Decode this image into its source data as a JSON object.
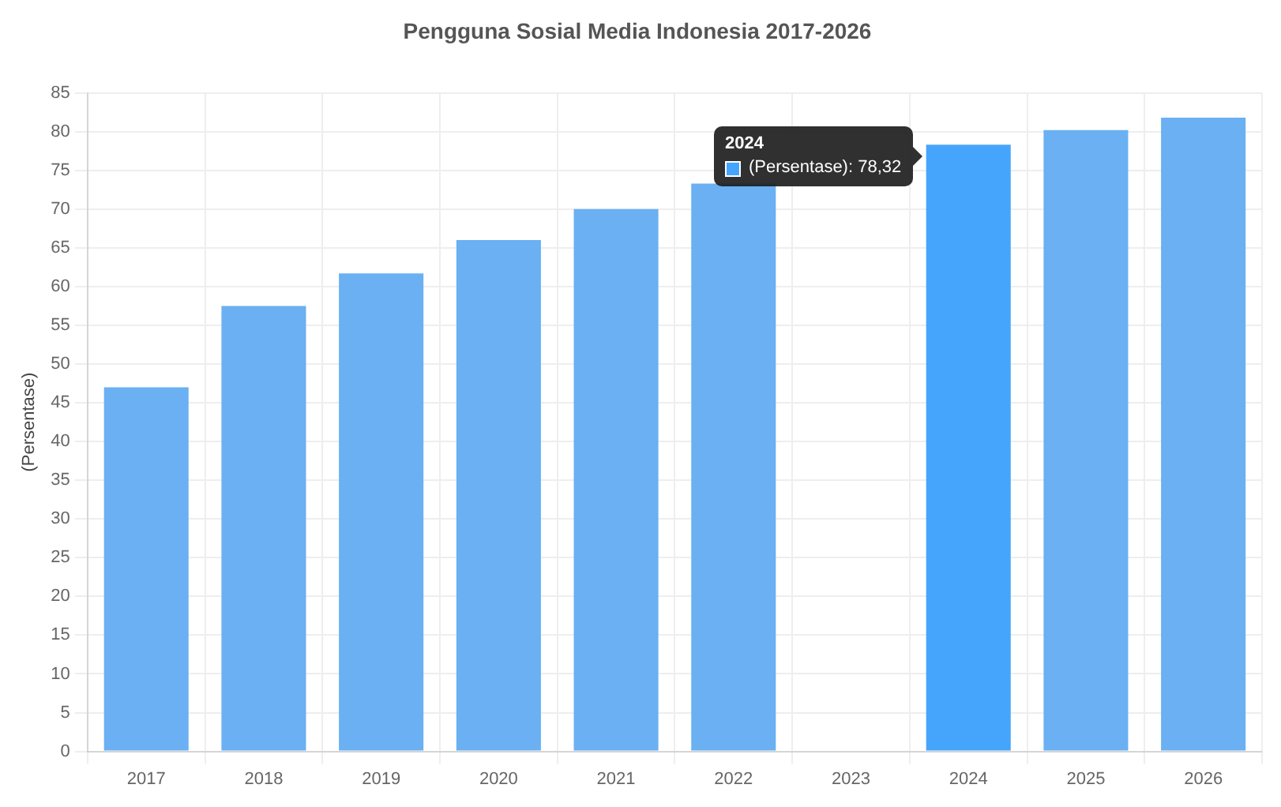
{
  "chart_data": {
    "type": "bar",
    "title": "Pengguna Sosial Media Indonesia 2017-2026",
    "ylabel": "(Persentase)",
    "categories": [
      "2017",
      "2018",
      "2019",
      "2020",
      "2021",
      "2022",
      "2023",
      "2024",
      "2025",
      "2026"
    ],
    "values": [
      47,
      57.5,
      61.7,
      66,
      70,
      73.3,
      null,
      78.32,
      80.2,
      81.8
    ],
    "colors": [
      "#6ab0f3",
      "#6ab0f3",
      "#6ab0f3",
      "#6ab0f3",
      "#6ab0f3",
      "#6ab0f3",
      "#6ab0f3",
      "#45a5fc",
      "#6ab0f3",
      "#6ab0f3"
    ],
    "ylim": [
      0,
      85
    ],
    "yticks": [
      0,
      5,
      10,
      15,
      20,
      25,
      30,
      35,
      40,
      45,
      50,
      55,
      60,
      65,
      70,
      75,
      80,
      85
    ],
    "grid": true,
    "legend": false,
    "annotations": [
      "2024",
      "(Persentase): 78,32"
    ]
  }
}
